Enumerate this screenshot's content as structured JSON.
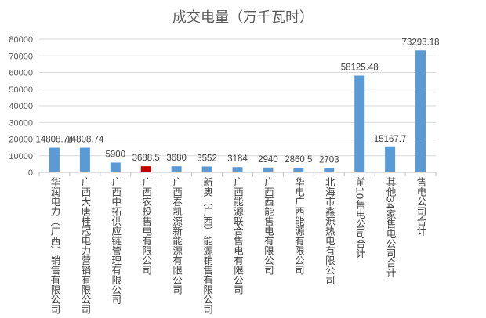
{
  "chart_data": {
    "type": "bar",
    "title": "成交电量（万千瓦时）",
    "xlabel": "",
    "ylabel": "",
    "ylim": [
      0,
      80000
    ],
    "yticks": [
      0,
      10000,
      20000,
      30000,
      40000,
      50000,
      60000,
      70000,
      80000
    ],
    "grid": true,
    "categories": [
      "华润电力（广西）销售有限公司",
      "广西大唐桂冠电力营销有限公司",
      "广西中拓供应链管理有限公司",
      "广西农投售电有限公司",
      "广西春凯源新能源有限公司",
      "新奥（广西）能源销售有限公司",
      "广西能源联合售电有限公司",
      "广西西能售电有限公司",
      "华电广西能源有限公司",
      "北海市鑫源热电有限公司",
      "前10售电公司合计",
      "其他34家售电公司合计",
      "售电公司合计"
    ],
    "values": [
      14808.74,
      14808.74,
      5900,
      3688.5,
      3680,
      3552,
      3184,
      2940,
      2860.5,
      2703,
      58125.48,
      15167.7,
      73293.18
    ],
    "value_labels": [
      "14808.74",
      "14808.74",
      "5900",
      "3688.5",
      "3680",
      "3552",
      "3184",
      "2940",
      "2860.5",
      "2703",
      "58125.48",
      "15167.7",
      "73293.18"
    ],
    "bar_color": "#5b9bd5",
    "highlight_color": "#c00000",
    "highlight_index": 3
  }
}
